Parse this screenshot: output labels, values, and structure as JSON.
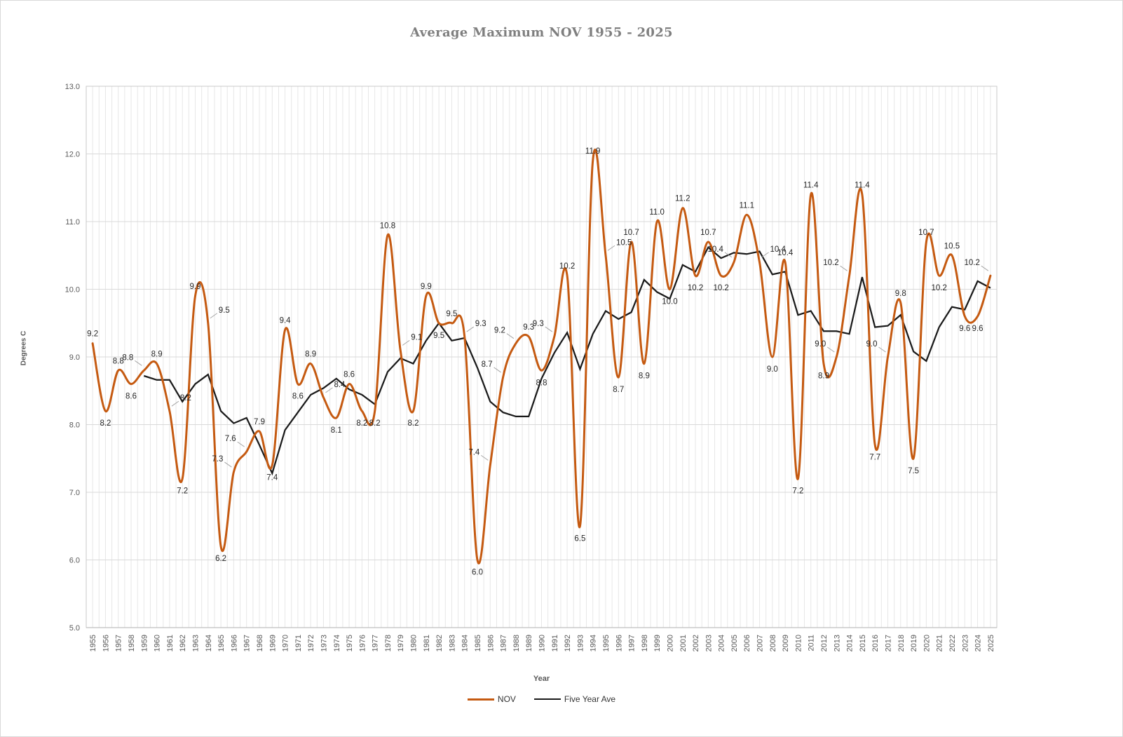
{
  "title": {
    "text": "Average Maximum NOV 1955 - 2025",
    "color": "#7F7F7F"
  },
  "axes": {
    "x": {
      "title": "Year",
      "tick_color": "#595959"
    },
    "y": {
      "title": "Degrees C",
      "tick_color": "#595959",
      "tick_labels": [
        "5.0",
        "6.0",
        "7.0",
        "8.0",
        "9.0",
        "10.0",
        "11.0",
        "12.0",
        "13.0"
      ]
    }
  },
  "legend": {
    "items": [
      {
        "label": "NOV",
        "color": "#C55A11"
      },
      {
        "label": "Five Year Ave",
        "color": "#1A1A1A"
      }
    ]
  },
  "colors": {
    "nov_line": "#C55A11",
    "five_year_ave_line": "#1A1A1A",
    "gridline_vertical": "#E7E7E7",
    "gridline_horizontal": "#D9D9D9",
    "plot_border": "#C9C9C9",
    "axis_line": "#BFBFBF",
    "data_label": "#262626",
    "leader_line": "#A6A6A6",
    "background": "#FFFFFF"
  },
  "chart_data": {
    "type": "line",
    "title": "Average Maximum NOV 1955 - 2025",
    "xlabel": "Year",
    "ylabel": "Degrees C",
    "ylim": [
      5.0,
      13.0
    ],
    "ytick_step": 1.0,
    "grid": {
      "vertical_half_year": true,
      "horizontal_major": true
    },
    "legend_position": "bottom",
    "x": [
      1955,
      1956,
      1957,
      1958,
      1959,
      1960,
      1961,
      1962,
      1963,
      1964,
      1965,
      1966,
      1967,
      1968,
      1969,
      1970,
      1971,
      1972,
      1973,
      1974,
      1975,
      1976,
      1977,
      1978,
      1979,
      1980,
      1981,
      1982,
      1983,
      1984,
      1985,
      1986,
      1987,
      1988,
      1989,
      1990,
      1991,
      1992,
      1993,
      1994,
      1995,
      1996,
      1997,
      1998,
      1999,
      2000,
      2001,
      2002,
      2003,
      2004,
      2005,
      2006,
      2007,
      2008,
      2009,
      2010,
      2011,
      2012,
      2013,
      2014,
      2015,
      2016,
      2017,
      2018,
      2019,
      2020,
      2021,
      2022,
      2023,
      2024,
      2025
    ],
    "series": [
      {
        "name": "NOV",
        "color": "#C55A11",
        "style": "smooth",
        "stroke_width": 3,
        "data_labels": true,
        "label_format": "0.0",
        "start_x": 1955,
        "values": [
          9.2,
          8.2,
          8.8,
          8.6,
          8.8,
          8.9,
          8.2,
          7.2,
          9.9,
          9.5,
          6.2,
          7.3,
          7.6,
          7.9,
          7.4,
          9.4,
          8.6,
          8.9,
          8.4,
          8.1,
          8.6,
          8.2,
          8.2,
          10.8,
          9.1,
          8.2,
          9.9,
          9.5,
          9.5,
          9.3,
          6.0,
          7.4,
          8.7,
          9.2,
          9.3,
          8.8,
          9.3,
          10.2,
          6.5,
          11.9,
          10.5,
          8.7,
          10.7,
          8.9,
          11.0,
          10.0,
          11.2,
          10.2,
          10.7,
          10.2,
          10.4,
          11.1,
          10.4,
          9.0,
          10.4,
          7.2,
          11.4,
          8.9,
          9.0,
          10.2,
          11.4,
          7.7,
          9.0,
          9.8,
          7.5,
          10.7,
          10.2,
          10.5,
          9.6,
          9.6,
          10.2
        ]
      },
      {
        "name": "Five Year Ave",
        "color": "#1A1A1A",
        "style": "straight",
        "stroke_width": 2.25,
        "data_labels": false,
        "start_x": 1959,
        "values": [
          8.72,
          8.66,
          8.66,
          8.34,
          8.6,
          8.74,
          8.2,
          8.02,
          8.1,
          7.7,
          7.28,
          7.92,
          8.18,
          8.44,
          8.54,
          8.68,
          8.52,
          8.44,
          8.3,
          8.78,
          8.98,
          8.9,
          9.24,
          9.5,
          9.24,
          9.28,
          8.84,
          8.34,
          8.18,
          8.12,
          8.12,
          8.68,
          9.06,
          9.36,
          8.82,
          9.34,
          9.68,
          9.56,
          9.66,
          10.14,
          9.96,
          9.86,
          10.36,
          10.26,
          10.62,
          10.46,
          10.54,
          10.52,
          10.56,
          10.22,
          10.26,
          9.62,
          9.68,
          9.38,
          9.38,
          9.34,
          10.18,
          9.44,
          9.46,
          9.62,
          9.08,
          8.94,
          9.44,
          9.74,
          9.7,
          10.12,
          10.02
        ]
      }
    ]
  }
}
